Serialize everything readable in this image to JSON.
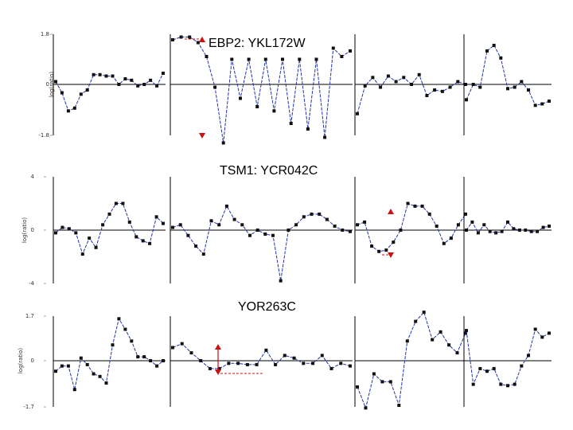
{
  "colors": {
    "line": "#2233aa",
    "point": "#111111",
    "axis": "#000000",
    "annotation": "#cc1111"
  },
  "chart_data": [
    {
      "type": "line",
      "title": "EBP2: YKL172W",
      "ylabel": "log(ratio)",
      "yticks": [
        "1.8",
        "0",
        "-1.8"
      ],
      "ylim": [
        -1.8,
        1.8
      ],
      "facets": [
        {
          "values": [
            0.1,
            -0.3,
            -0.95,
            -0.85,
            -0.35,
            -0.2,
            0.35,
            0.35,
            0.3,
            0.3,
            0.0,
            0.2,
            0.15,
            -0.05,
            0.0,
            0.15,
            -0.05,
            0.4
          ]
        },
        {
          "values": [
            1.6,
            1.7,
            1.7,
            1.5,
            1.0,
            -0.1,
            -2.1,
            0.9,
            -0.5,
            0.9,
            -0.8,
            0.9,
            -0.95,
            0.9,
            -1.4,
            0.9,
            -1.6,
            0.9,
            -1.9,
            1.3,
            1.0,
            1.2
          ]
        },
        {
          "values": [
            -1.05,
            -0.05,
            0.25,
            -0.1,
            0.3,
            0.1,
            0.25,
            0.0,
            0.35,
            -0.4,
            -0.2,
            -0.25,
            -0.1,
            0.1,
            0.0
          ]
        },
        {
          "values": [
            -0.55,
            0.0,
            -0.1,
            1.2,
            1.4,
            0.95,
            -0.15,
            -0.1,
            0.1,
            -0.2,
            -0.75,
            -0.7,
            -0.6
          ]
        }
      ]
    },
    {
      "type": "line",
      "title": "TSM1: YCR042C",
      "ylabel": "log(ratio)",
      "yticks": [
        "4",
        "0",
        "-4"
      ],
      "ylim": [
        -4,
        4
      ],
      "facets": [
        {
          "values": [
            -0.2,
            0.2,
            0.1,
            -0.2,
            -1.8,
            -0.6,
            -1.3,
            0.4,
            1.2,
            2.0,
            2.0,
            0.6,
            -0.5,
            -0.8,
            -1.0,
            1.0,
            0.5
          ]
        },
        {
          "values": [
            0.2,
            0.4,
            -0.4,
            -1.2,
            -1.8,
            0.7,
            0.4,
            1.8,
            0.8,
            0.4,
            -0.4,
            0.0,
            -0.3,
            -0.4,
            -3.8,
            0.0,
            0.4,
            1.0,
            1.2,
            1.2,
            0.8,
            0.3,
            0.0,
            -0.1
          ]
        },
        {
          "values": [
            0.4,
            0.6,
            -1.2,
            -1.6,
            -1.5,
            -0.9,
            0.0,
            2.0,
            1.8,
            1.8,
            1.2,
            0.3,
            -1.0,
            -0.6,
            0.4,
            1.2
          ]
        },
        {
          "values": [
            0.0,
            0.6,
            -0.2,
            0.4,
            -0.1,
            -0.2,
            -0.1,
            0.6,
            0.1,
            0.0,
            0.0,
            -0.1,
            -0.1,
            0.2,
            0.3
          ]
        }
      ]
    },
    {
      "type": "line",
      "title": "YOR263C",
      "ylabel": "log(ratio)",
      "yticks": [
        "1.7",
        "0",
        "-1.7"
      ],
      "ylim": [
        -1.7,
        1.7
      ],
      "facets": [
        {
          "values": [
            -0.4,
            -0.2,
            -0.2,
            -1.1,
            0.1,
            -0.15,
            -0.5,
            -0.6,
            -0.85,
            0.6,
            1.6,
            1.2,
            0.75,
            0.15,
            0.15,
            0.0,
            -0.2,
            0.0
          ]
        },
        {
          "values": [
            0.5,
            0.65,
            0.3,
            0.0,
            -0.3,
            -0.3,
            -0.1,
            -0.1,
            -0.15,
            -0.15,
            0.4,
            -0.15,
            0.2,
            0.1,
            -0.1,
            -0.1,
            0.2,
            -0.3,
            -0.1,
            -0.2
          ]
        },
        {
          "values": [
            -1.0,
            -1.8,
            -0.5,
            -0.8,
            -0.8,
            -1.7,
            0.75,
            1.5,
            1.85,
            0.8,
            1.1,
            0.6,
            0.3,
            1.05
          ]
        },
        {
          "values": [
            1.15,
            -0.9,
            -0.3,
            -0.4,
            -0.3,
            -0.9,
            -0.95,
            -0.9,
            -0.2,
            0.2,
            1.2,
            0.9,
            1.05
          ]
        }
      ]
    }
  ]
}
